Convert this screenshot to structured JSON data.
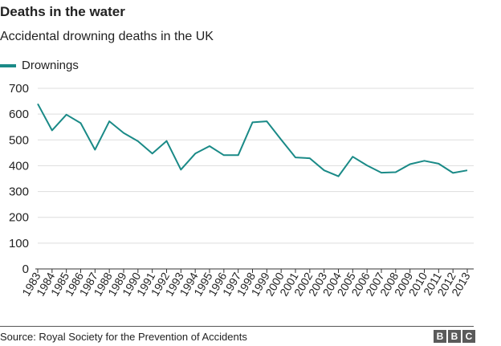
{
  "title": "Deaths in the water",
  "subtitle": "Accidental drowning deaths in the UK",
  "source": "Source: Royal Society for the Prevention of Accidents",
  "logo_text": "BBC",
  "colors": {
    "line": "#1a8a87",
    "grid": "#dddddd",
    "axis": "#333333",
    "text": "#222222"
  },
  "chart_data": {
    "type": "line",
    "title": "Deaths in the water",
    "subtitle": "Accidental drowning deaths in the UK",
    "xlabel": "",
    "ylabel": "",
    "ylim": [
      0,
      700
    ],
    "yticks": [
      0,
      100,
      200,
      300,
      400,
      500,
      600,
      700
    ],
    "grid": true,
    "legend": "top-left",
    "x": [
      "1983",
      "1984",
      "1985",
      "1986",
      "1987",
      "1988",
      "1989",
      "1990",
      "1991",
      "1992",
      "1993",
      "1994",
      "1995",
      "1996",
      "1997",
      "1998",
      "1999",
      "2000",
      "2001",
      "2002",
      "2003",
      "2004",
      "2005",
      "2006",
      "2007",
      "2008",
      "2009",
      "2010",
      "2011",
      "2012",
      "2013"
    ],
    "series": [
      {
        "name": "Drownings",
        "values": [
          640,
          537,
          598,
          565,
          462,
          572,
          527,
          495,
          447,
          496,
          385,
          447,
          476,
          441,
          441,
          568,
          572,
          501,
          432,
          429,
          382,
          359,
          435,
          401,
          373,
          375,
          406,
          419,
          408,
          372,
          382
        ]
      }
    ]
  }
}
